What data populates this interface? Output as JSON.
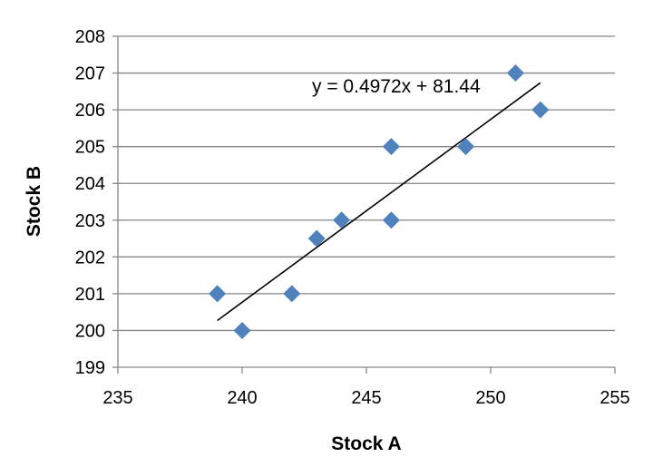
{
  "chart_data": {
    "type": "scatter",
    "title": "",
    "xlabel": "Stock A",
    "ylabel": "Stock B",
    "xlim": [
      235,
      255
    ],
    "ylim": [
      199,
      208
    ],
    "xticks": [
      "235",
      "240",
      "245",
      "250",
      "255"
    ],
    "yticks": [
      "199",
      "200",
      "201",
      "202",
      "203",
      "204",
      "205",
      "206",
      "207",
      "208"
    ],
    "grid": "horizontal",
    "series": [
      {
        "points": [
          {
            "x": 239,
            "y": 201
          },
          {
            "x": 240,
            "y": 200
          },
          {
            "x": 242,
            "y": 201
          },
          {
            "x": 243,
            "y": 202.5
          },
          {
            "x": 244,
            "y": 203
          },
          {
            "x": 246,
            "y": 205
          },
          {
            "x": 246,
            "y": 203
          },
          {
            "x": 249,
            "y": 205
          },
          {
            "x": 251,
            "y": 207
          },
          {
            "x": 252,
            "y": 206
          }
        ],
        "marker": "diamond",
        "color": "#4F81BD"
      }
    ],
    "trendline": {
      "type": "linear",
      "slope": 0.4972,
      "intercept": 81.44,
      "x_range": [
        239,
        252
      ],
      "color": "#000000",
      "equation_label": "y = 0.4972x + 81.44"
    }
  }
}
